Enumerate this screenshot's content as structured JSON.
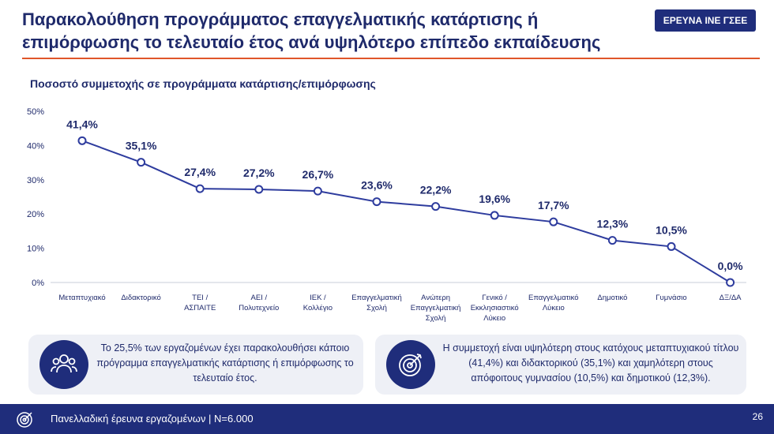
{
  "header": {
    "title": "Παρακολούθηση προγράμματος επαγγελματικής κατάρτισης ή επιμόρφωσης το τελευταίο έτος ανά υψηλότερο επίπεδο εκπαίδευσης",
    "badge": "ΕΡΕΥΝΑ ΙΝΕ ΓΣΕΕ"
  },
  "chart_data": {
    "type": "line",
    "title": "Ποσοστό συμμετοχής σε προγράμματα κατάρτισης/επιμόρφωσης",
    "categories": [
      [
        "Μεταπτυχιακό"
      ],
      [
        "Διδακτορικό"
      ],
      [
        "ΤΕΙ /",
        "ΑΣΠΑΙΤΕ"
      ],
      [
        "ΑΕΙ /",
        "Πολυτεχνείο"
      ],
      [
        "ΙΕΚ /",
        "Κολλέγιο"
      ],
      [
        "Επαγγελματική",
        "Σχολή"
      ],
      [
        "Ανώτερη",
        "Επαγγελματική",
        "Σχολή"
      ],
      [
        "Γενικό /",
        "Εκκλησιαστικό",
        "Λύκειο"
      ],
      [
        "Επαγγελματικό",
        "Λύκειο"
      ],
      [
        "Δημοτικό"
      ],
      [
        "Γυμνάσιο"
      ],
      [
        "ΔΞ/ΔΑ"
      ]
    ],
    "values": [
      41.4,
      35.1,
      27.4,
      27.2,
      26.7,
      23.6,
      22.2,
      19.6,
      17.7,
      12.3,
      10.5,
      0.0
    ],
    "data_labels": [
      "41,4%",
      "35,1%",
      "27,4%",
      "27,2%",
      "26,7%",
      "23,6%",
      "22,2%",
      "19,6%",
      "17,7%",
      "12,3%",
      "10,5%",
      "0,0%"
    ],
    "yticks": [
      "0%",
      "10%",
      "20%",
      "30%",
      "40%",
      "50%"
    ],
    "ylim": [
      0,
      50
    ],
    "grid": false,
    "line_color": "#2e3c9e"
  },
  "cards": [
    {
      "icon": "people-icon",
      "text": "Το 25,5% των εργαζομένων έχει παρακολουθήσει κάποιο πρόγραμμα επαγγελματικής κατάρτισης ή επιμόρφωσης το τελευταίο έτος."
    },
    {
      "icon": "target-icon",
      "text": "Η συμμετοχή είναι υψηλότερη στους κατόχους μεταπτυχιακού τίτλου (41,4%) και διδακτορικού (35,1%) και χαμηλότερη στους απόφοιτους γυμνασίου (10,5%) και δημοτικού (12,3%)."
    }
  ],
  "footer": {
    "text": "Πανελλαδική έρευνα εργαζομένων  |  Ν=6.000",
    "page": "26"
  },
  "colors": {
    "navy": "#1f2d7b",
    "accent_rule": "#e0562a",
    "card_bg": "#eef0f6"
  }
}
